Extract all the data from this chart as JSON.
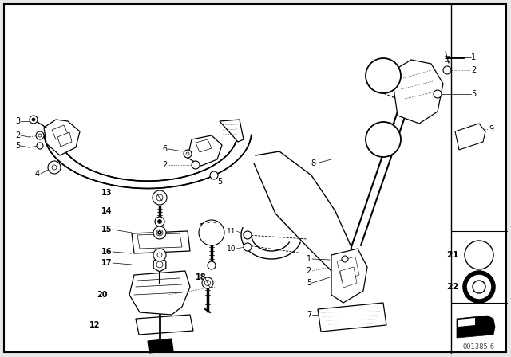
{
  "bg_color": "#e8e8e8",
  "line_color": "#000000",
  "part_number": "001385-6",
  "figsize": [
    6.4,
    4.48
  ],
  "dpi": 100
}
